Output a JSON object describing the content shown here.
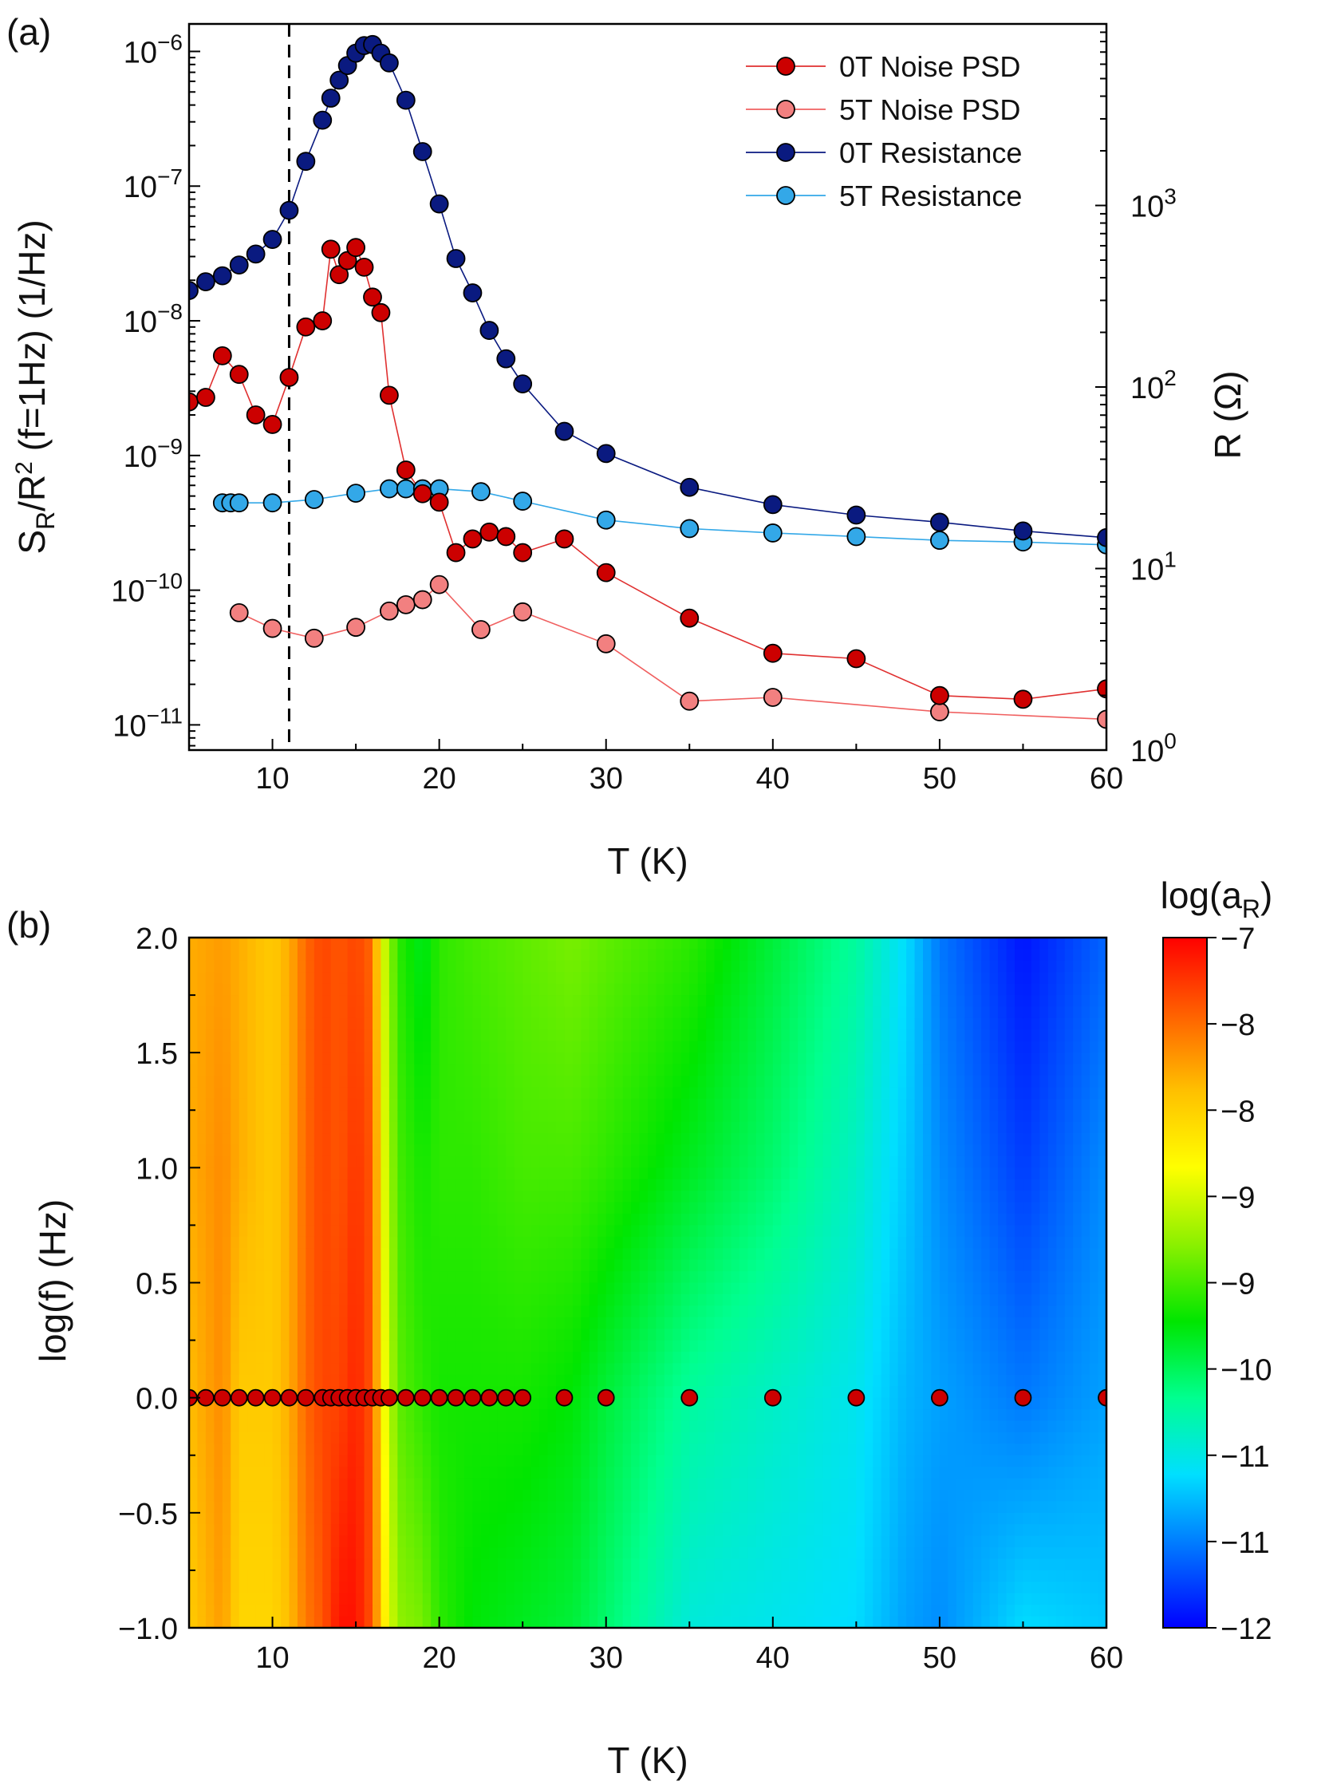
{
  "chart_data": [
    {
      "type": "scatter",
      "panel_label": "(a)",
      "xlabel": "T (K)",
      "ylabel_left": "S_R/R^2 (f=1Hz) (1/Hz)",
      "ylabel_right": "R (Ω)",
      "xlim": [
        5,
        60
      ],
      "ylim_left": [
        6.5e-12,
        1.6e-06
      ],
      "ylim_right": [
        1,
        10000
      ],
      "yscale_left": "log",
      "yscale_right": "log",
      "xticks": [
        10,
        20,
        30,
        40,
        50,
        60
      ],
      "yticks_left": [
        {
          "base": "10",
          "exp": "−11",
          "value": 1e-11
        },
        {
          "base": "10",
          "exp": "−10",
          "value": 1e-10
        },
        {
          "base": "10",
          "exp": "−9",
          "value": 1e-09
        },
        {
          "base": "10",
          "exp": "−8",
          "value": 1e-08
        },
        {
          "base": "10",
          "exp": "−7",
          "value": 1e-07
        },
        {
          "base": "10",
          "exp": "−6",
          "value": 1e-06
        }
      ],
      "yticks_right": [
        {
          "base": "10",
          "exp": "0",
          "value": 1
        },
        {
          "base": "10",
          "exp": "1",
          "value": 10
        },
        {
          "base": "10",
          "exp": "2",
          "value": 100
        },
        {
          "base": "10",
          "exp": "3",
          "value": 1000
        }
      ],
      "vline_x": 11,
      "legend_position": "top-right",
      "series": [
        {
          "name": "0T Noise PSD",
          "axis": "left",
          "color": "#cc0000",
          "line_color": "#e03030",
          "x": [
            5,
            6,
            7,
            8,
            9,
            10,
            11,
            12,
            13,
            13.5,
            14,
            14.5,
            15,
            15.5,
            16,
            16.5,
            17,
            18,
            19,
            20,
            21,
            22,
            23,
            24,
            25,
            27.5,
            30,
            35,
            40,
            45,
            50,
            55,
            60
          ],
          "y": [
            2.5e-09,
            2.7e-09,
            5.5e-09,
            4e-09,
            2e-09,
            1.7e-09,
            3.8e-09,
            9e-09,
            1e-08,
            3.4e-08,
            2.2e-08,
            2.8e-08,
            3.5e-08,
            2.5e-08,
            1.5e-08,
            1.15e-08,
            2.8e-09,
            7.8e-10,
            5.2e-10,
            4.5e-10,
            1.9e-10,
            2.4e-10,
            2.7e-10,
            2.5e-10,
            1.9e-10,
            2.4e-10,
            1.35e-10,
            6.2e-11,
            3.4e-11,
            3.1e-11,
            1.65e-11,
            1.55e-11,
            1.85e-11
          ]
        },
        {
          "name": "5T Noise PSD",
          "axis": "left",
          "color": "#f28080",
          "line_color": "#f06060",
          "x": [
            8,
            10,
            12.5,
            15,
            17,
            18,
            19,
            20,
            22.5,
            25,
            30,
            35,
            40,
            50,
            60
          ],
          "y": [
            6.8e-11,
            5.2e-11,
            4.4e-11,
            5.3e-11,
            7e-11,
            7.8e-11,
            8.5e-11,
            1.1e-10,
            5.1e-11,
            6.9e-11,
            4e-11,
            1.5e-11,
            1.6e-11,
            1.25e-11,
            1.1e-11
          ]
        },
        {
          "name": "0T Resistance",
          "axis": "right",
          "color": "#0a1a80",
          "line_color": "#0a1a80",
          "x": [
            5,
            6,
            7,
            8,
            9,
            10,
            11,
            12,
            13,
            13.5,
            14,
            14.5,
            15,
            15.5,
            16,
            16.5,
            17,
            18,
            19,
            20,
            21,
            22,
            23,
            24,
            25,
            27.5,
            30,
            35,
            40,
            45,
            50,
            55,
            60
          ],
          "y": [
            340,
            380,
            410,
            470,
            540,
            650,
            940,
            1750,
            2950,
            3900,
            4900,
            5900,
            6900,
            7600,
            7700,
            6900,
            6100,
            3800,
            1980,
            1020,
            510,
            330,
            205,
            143,
            104,
            57,
            43,
            28,
            22.5,
            19.7,
            18,
            16.1,
            14.8
          ]
        },
        {
          "name": "5T Resistance",
          "axis": "right",
          "color": "#33a8e8",
          "line_color": "#33a8e8",
          "x": [
            7,
            7.5,
            8,
            10,
            12.5,
            15,
            17,
            18,
            19,
            20,
            22.5,
            25,
            30,
            35,
            40,
            45,
            50,
            55,
            60
          ],
          "y": [
            23,
            23,
            23,
            23,
            24,
            26,
            27.5,
            27.5,
            27.5,
            27.5,
            26.5,
            23.5,
            18.5,
            16.6,
            15.7,
            15,
            14.3,
            14,
            13.5
          ]
        }
      ]
    },
    {
      "type": "heatmap",
      "panel_label": "(b)",
      "xlabel": "T (K)",
      "ylabel": "log(f) (Hz)",
      "xlim": [
        5,
        60
      ],
      "ylim": [
        -1.0,
        2.0
      ],
      "xticks": [
        10,
        20,
        30,
        40,
        50,
        60
      ],
      "yticks": [
        "−1.0",
        "−0.5",
        "0.0",
        "0.5",
        "1.0",
        "1.5",
        "2.0"
      ],
      "colorbar_label": "log(a_R)",
      "colorbar_range": [
        -12,
        -7
      ],
      "colorbar_ticks": [
        "−7",
        "−8",
        "−8",
        "−9",
        "−9",
        "−10",
        "−11",
        "−11",
        "−12"
      ],
      "colormap": [
        "#0000ff",
        "#0070ff",
        "#00dfff",
        "#00ff90",
        "#00e600",
        "#8cf000",
        "#ffff00",
        "#ffc000",
        "#ff6000",
        "#ff0000"
      ],
      "columns": [
        {
          "x": 5,
          "v": [
            -8.2,
            -8.1,
            -8.0,
            -8.0
          ]
        },
        {
          "x": 7,
          "v": [
            -7.9,
            -7.8,
            -7.8,
            -7.9
          ]
        },
        {
          "x": 8,
          "v": [
            -8.3,
            -8.2,
            -8.0,
            -8.0
          ]
        },
        {
          "x": 10,
          "v": [
            -8.3,
            -8.2,
            -8.2,
            -8.2
          ]
        },
        {
          "x": 11,
          "v": [
            -8.1,
            -8.0,
            -8.0,
            -8.0
          ]
        },
        {
          "x": 12,
          "v": [
            -7.7,
            -7.6,
            -7.6,
            -7.6
          ]
        },
        {
          "x": 13,
          "v": [
            -7.5,
            -7.4,
            -7.4,
            -7.4
          ]
        },
        {
          "x": 14,
          "v": [
            -7.1,
            -7.4,
            -7.5,
            -7.5
          ]
        },
        {
          "x": 15,
          "v": [
            -7.1,
            -7.2,
            -7.3,
            -7.4
          ]
        },
        {
          "x": 16,
          "v": [
            -7.5,
            -7.5,
            -7.5,
            -7.6
          ]
        },
        {
          "x": 16.6,
          "v": [
            -8.4,
            -8.6,
            -8.7,
            -8.8
          ]
        },
        {
          "x": 17.5,
          "v": [
            -9.2,
            -9.4,
            -9.5,
            -9.6
          ]
        },
        {
          "x": 19,
          "v": [
            -9.3,
            -9.6,
            -9.7,
            -9.9
          ]
        },
        {
          "x": 20,
          "v": [
            -9.6,
            -9.7,
            -9.6,
            -9.6
          ]
        },
        {
          "x": 22,
          "v": [
            -9.8,
            -9.7,
            -9.6,
            -9.5
          ]
        },
        {
          "x": 25,
          "v": [
            -9.9,
            -9.7,
            -9.5,
            -9.4
          ]
        },
        {
          "x": 28,
          "v": [
            -10.0,
            -9.8,
            -9.5,
            -9.3
          ]
        },
        {
          "x": 30,
          "v": [
            -10.2,
            -10.0,
            -9.6,
            -9.4
          ]
        },
        {
          "x": 35,
          "v": [
            -10.7,
            -10.4,
            -9.9,
            -9.6
          ]
        },
        {
          "x": 40,
          "v": [
            -10.8,
            -10.6,
            -10.2,
            -10.0
          ]
        },
        {
          "x": 45,
          "v": [
            -10.9,
            -10.8,
            -10.6,
            -10.4
          ]
        },
        {
          "x": 48,
          "v": [
            -11.2,
            -11.1,
            -11.0,
            -10.9
          ]
        },
        {
          "x": 50,
          "v": [
            -11.3,
            -11.2,
            -11.3,
            -11.4
          ]
        },
        {
          "x": 55,
          "v": [
            -10.9,
            -11.4,
            -11.7,
            -11.9
          ]
        },
        {
          "x": 60,
          "v": [
            -11.0,
            -11.2,
            -11.3,
            -11.5
          ]
        }
      ],
      "marker_row_logf": 0.0,
      "marker_x": [
        5,
        6,
        7,
        8,
        9,
        10,
        11,
        12,
        13,
        13.5,
        14,
        14.5,
        15,
        15.5,
        16,
        16.5,
        17,
        18,
        19,
        20,
        21,
        22,
        23,
        24,
        25,
        27.5,
        30,
        35,
        40,
        45,
        50,
        55,
        60
      ],
      "marker_color": "#cc0000"
    }
  ]
}
